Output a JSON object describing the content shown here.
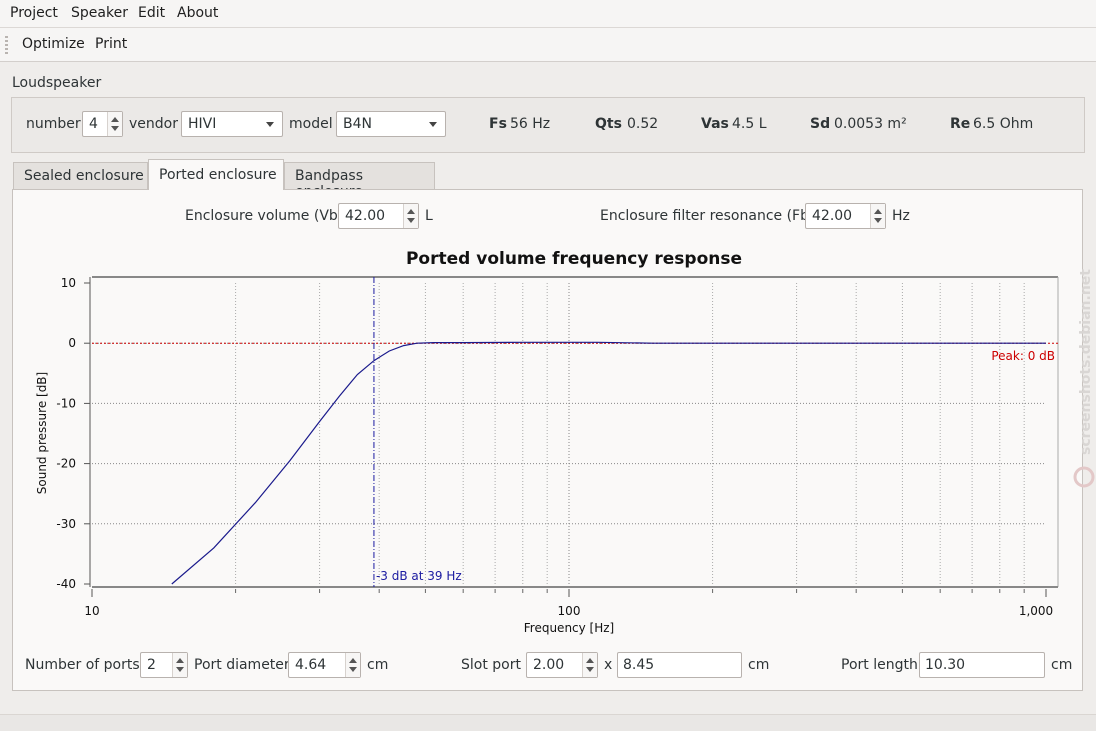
{
  "menubar": {
    "items": [
      "Project",
      "Speaker",
      "Edit",
      "About"
    ]
  },
  "toolbar": {
    "items": [
      "Optimize",
      "Print"
    ]
  },
  "loudspeaker": {
    "title": "Loudspeaker",
    "number_label": "number",
    "number_value": "4",
    "vendor_label": "vendor",
    "vendor_value": "HIVI",
    "model_label": "model",
    "model_value": "B4N",
    "params": [
      {
        "name": "Fs",
        "value": "56 Hz"
      },
      {
        "name": "Qts",
        "value": "0.52"
      },
      {
        "name": "Vas",
        "value": "4.5 L"
      },
      {
        "name": "Sd",
        "value": "0.0053 m²"
      },
      {
        "name": "Re",
        "value": "6.5 Ohm"
      }
    ]
  },
  "tabs": [
    "Sealed enclosure",
    "Ported enclosure",
    "Bandpass enclosure"
  ],
  "active_tab": 1,
  "enclosure": {
    "volume_label": "Enclosure volume (Vb)",
    "volume_value": "42.00",
    "volume_unit": "L",
    "fb_label": "Enclosure filter resonance (Fb)",
    "fb_value": "42.00",
    "fb_unit": "Hz"
  },
  "ports": {
    "num_label": "Number of ports",
    "num_value": "2",
    "diameter_label": "Port diameter",
    "diameter_value": "4.64",
    "diameter_unit": "cm",
    "slot_label": "Slot port",
    "slot_w": "2.00",
    "slot_x": "x",
    "slot_h": "8.45",
    "slot_unit": "cm",
    "length_label": "Port length",
    "length_value": "10.30",
    "length_unit": "cm"
  },
  "chart_data": {
    "type": "line",
    "title": "Ported volume frequency response",
    "xlabel": "Frequency [Hz]",
    "ylabel": "Sound pressure [dB]",
    "xscale": "log",
    "xlim": [
      10,
      1000
    ],
    "ylim": [
      -40,
      10
    ],
    "xticks": [
      "10",
      "100",
      "1,000"
    ],
    "yticks": [
      "10",
      "0",
      "-10",
      "-20",
      "-30",
      "-40"
    ],
    "grid": true,
    "series": [
      {
        "color": "#1a1a8c",
        "x": [
          14.7,
          18,
          22,
          26,
          30,
          33,
          36,
          39,
          42,
          45,
          48,
          52,
          60,
          80,
          100,
          115,
          150,
          300,
          600,
          1000
        ],
        "y": [
          -40,
          -34,
          -26.5,
          -19.5,
          -13,
          -8.8,
          -5.2,
          -2.9,
          -1.3,
          -0.4,
          0,
          0.1,
          0.1,
          0.15,
          0.15,
          0.15,
          0,
          0,
          0,
          0
        ]
      }
    ],
    "annotations": {
      "peak_line_y": 0,
      "peak_label": "Peak: 0 dB",
      "peak_color": "#cc0000",
      "cutoff_x": 39,
      "cutoff_label": "-3 dB at 39 Hz",
      "cutoff_color": "#1a1aa0"
    }
  },
  "watermark": "screenshots.debian.net"
}
